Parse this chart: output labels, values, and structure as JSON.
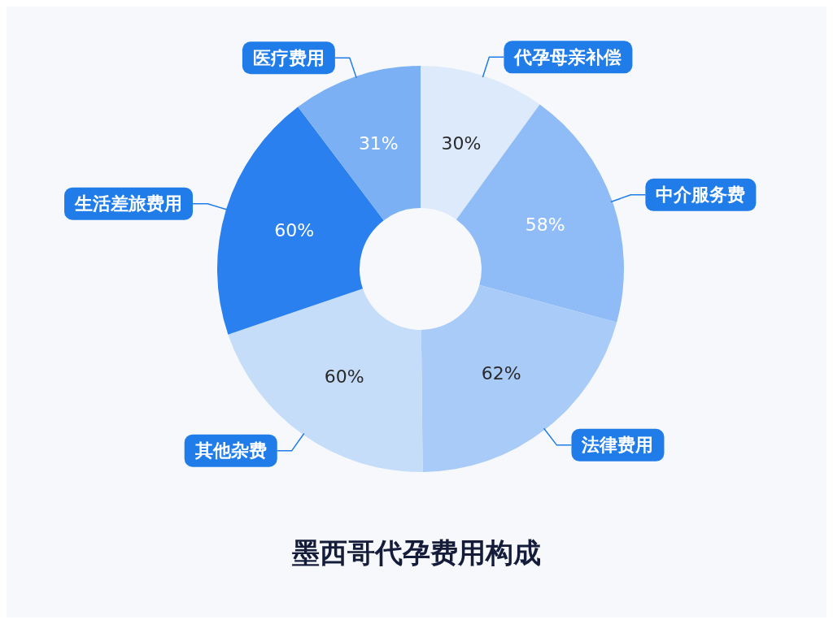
{
  "chart_data": {
    "type": "donut",
    "title": "墨西哥代孕费用构成",
    "categories": [
      "代孕母亲补偿",
      "中介服务费",
      "法律费用",
      "其他杂费",
      "生活差旅费用",
      "医疗费用"
    ],
    "values": [
      30,
      58,
      62,
      60,
      60,
      31
    ],
    "colors": [
      "#dceafc",
      "#8fbbf6",
      "#a8cbf8",
      "#c6ddfa",
      "#2a80ee",
      "#7cb0f4"
    ],
    "value_labels": [
      "30%",
      "58%",
      "62%",
      "60%",
      "60%",
      "31%"
    ]
  }
}
